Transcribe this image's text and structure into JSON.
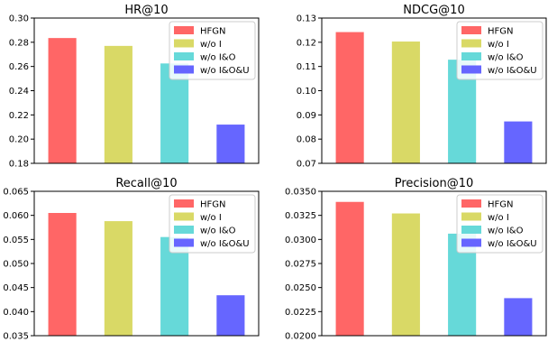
{
  "chart_data": [
    {
      "type": "bar",
      "title": "HR@10",
      "categories": [
        "HFGN",
        "w/o I",
        "w/o I&O",
        "w/o I&O&U"
      ],
      "values": [
        0.2835,
        0.277,
        0.2625,
        0.212
      ],
      "ylim": [
        0.18,
        0.3
      ],
      "yticks": [
        "0.18",
        "0.20",
        "0.22",
        "0.24",
        "0.26",
        "0.28",
        "0.30"
      ],
      "legend": [
        "HFGN",
        "w/o I",
        "w/o I&O",
        "w/o I&O&U"
      ],
      "legend_position": "top-right"
    },
    {
      "type": "bar",
      "title": "NDCG@10",
      "categories": [
        "HFGN",
        "w/o I",
        "w/o I&O",
        "w/o I&O&U"
      ],
      "values": [
        0.1242,
        0.1203,
        0.1128,
        0.0873
      ],
      "ylim": [
        0.07,
        0.13
      ],
      "yticks": [
        "0.07",
        "0.08",
        "0.09",
        "0.10",
        "0.11",
        "0.12",
        "0.13"
      ],
      "legend": [
        "HFGN",
        "w/o I",
        "w/o I&O",
        "w/o I&O&U"
      ],
      "legend_position": "top-right"
    },
    {
      "type": "bar",
      "title": "Recall@10",
      "categories": [
        "HFGN",
        "w/o I",
        "w/o I&O",
        "w/o I&O&U"
      ],
      "values": [
        0.0605,
        0.0588,
        0.0555,
        0.0434
      ],
      "ylim": [
        0.035,
        0.065
      ],
      "yticks": [
        "0.035",
        "0.040",
        "0.045",
        "0.050",
        "0.055",
        "0.060",
        "0.065"
      ],
      "legend": [
        "HFGN",
        "w/o I",
        "w/o I&O",
        "w/o I&O&U"
      ],
      "legend_position": "top-right"
    },
    {
      "type": "bar",
      "title": "Precision@10",
      "categories": [
        "HFGN",
        "w/o I",
        "w/o I&O",
        "w/o I&O&U"
      ],
      "values": [
        0.0339,
        0.0327,
        0.0306,
        0.0239
      ],
      "ylim": [
        0.02,
        0.035
      ],
      "yticks": [
        "0.0200",
        "0.0225",
        "0.0250",
        "0.0275",
        "0.0300",
        "0.0325",
        "0.0350"
      ],
      "legend": [
        "HFGN",
        "w/o I",
        "w/o I&O",
        "w/o I&O&U"
      ],
      "legend_position": "top-right"
    }
  ],
  "colors": {
    "HFGN": "#ff6666",
    "w/o I": "#d9d966",
    "w/o I&O": "#66d9d9",
    "w/o I&O&U": "#6666ff"
  }
}
